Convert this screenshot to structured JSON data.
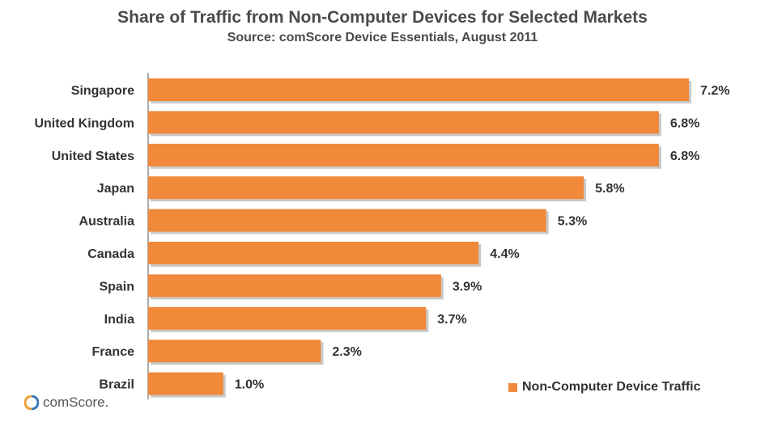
{
  "colors": {
    "bar": "#F0893A",
    "bar_shadow": "#c9c9c9",
    "axis": "#555555"
  },
  "logo": {
    "text": "comScore."
  },
  "chart_data": {
    "type": "bar",
    "orientation": "horizontal",
    "title": "Share of Traffic from Non-Computer Devices for Selected  Markets",
    "subtitle": "Source: comScore Device Essentials, August 2011",
    "categories": [
      "Singapore",
      "United Kingdom",
      "United States",
      "Japan",
      "Australia",
      "Canada",
      "Spain",
      "India",
      "France",
      "Brazil"
    ],
    "series": [
      {
        "name": "Non-Computer Device Traffic",
        "values": [
          7.2,
          6.8,
          6.8,
          5.8,
          5.3,
          4.4,
          3.9,
          3.7,
          2.3,
          1.0
        ],
        "labels": [
          "7.2%",
          "6.8%",
          "6.8%",
          "5.8%",
          "5.3%",
          "4.4%",
          "3.9%",
          "3.7%",
          "2.3%",
          "1.0%"
        ]
      }
    ],
    "xlim": [
      0,
      7.2
    ],
    "grid": false,
    "legend": "bottom-right"
  }
}
